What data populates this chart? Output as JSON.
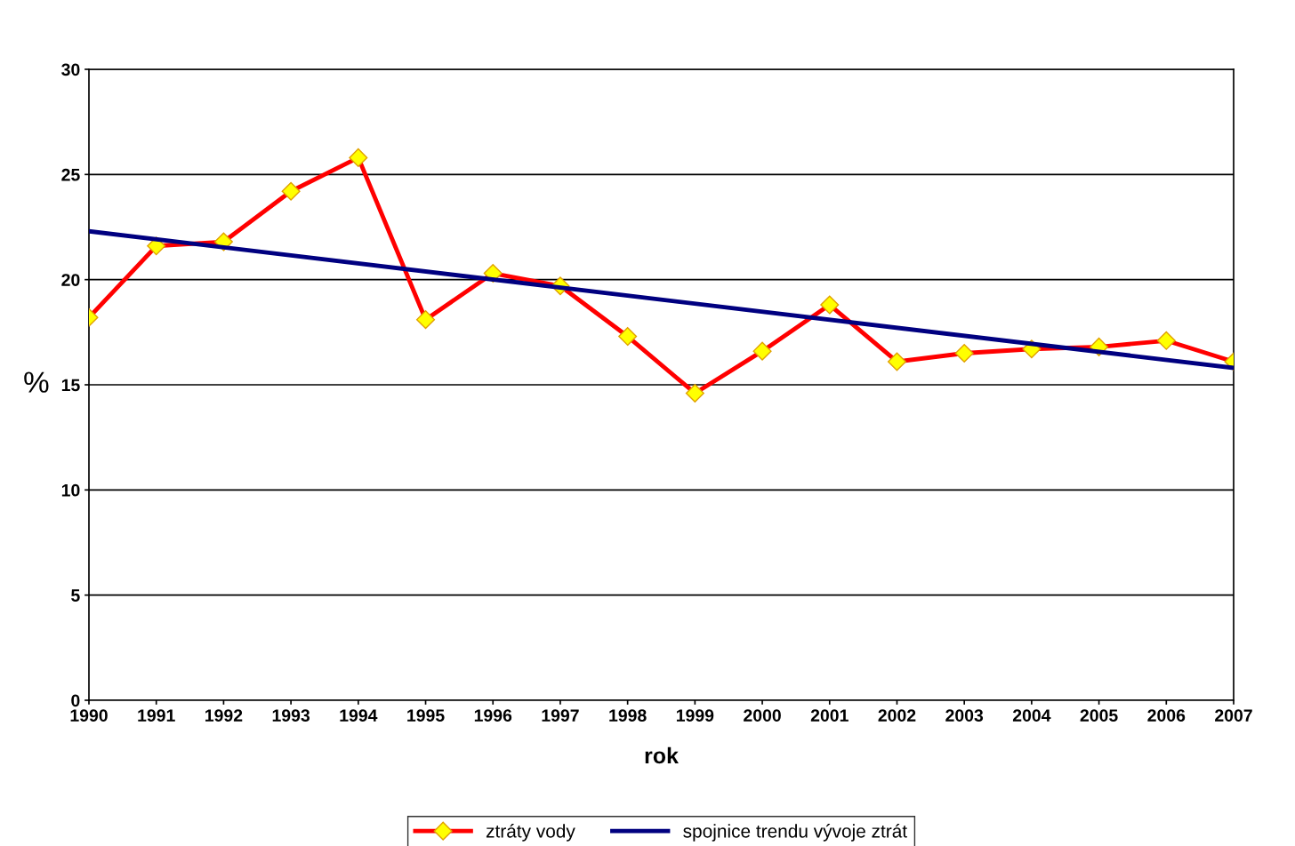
{
  "chart_data": {
    "type": "line",
    "xlabel": "rok",
    "ylabel": "%",
    "categories": [
      "1990",
      "1991",
      "1992",
      "1993",
      "1994",
      "1995",
      "1996",
      "1997",
      "1998",
      "1999",
      "2000",
      "2001",
      "2002",
      "2003",
      "2004",
      "2005",
      "2006",
      "2007"
    ],
    "series": [
      {
        "name": "ztráty vody",
        "color": "#ff0000",
        "marker": "diamond",
        "values": [
          18.2,
          21.6,
          21.8,
          24.2,
          25.8,
          18.1,
          20.3,
          19.7,
          17.3,
          14.6,
          16.6,
          18.8,
          16.1,
          16.5,
          16.7,
          16.8,
          17.1,
          16.1
        ]
      },
      {
        "name": "spojnice trendu vývoje ztrát",
        "color": "#000080",
        "marker": "none",
        "values": [
          22.3,
          null,
          null,
          null,
          null,
          null,
          null,
          null,
          null,
          null,
          null,
          null,
          null,
          null,
          null,
          null,
          null,
          15.8
        ]
      }
    ],
    "ylim": [
      0,
      30
    ],
    "yticks": [
      0,
      5,
      10,
      15,
      20,
      25,
      30
    ],
    "grid": "y",
    "legend": "bottom"
  }
}
